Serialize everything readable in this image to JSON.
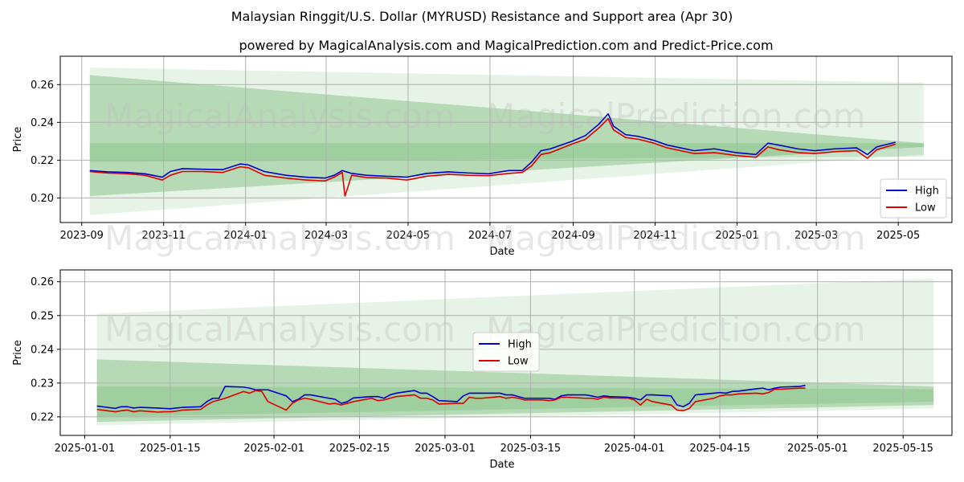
{
  "header": {
    "title": "Malaysian Ringgit/U.S. Dollar (MYRUSD) Resistance and Support area (Apr 30)",
    "subtitle": "powered by MagicalAnalysis.com and MagicalPrediction.com and Predict-Price.com"
  },
  "watermarks": [
    "MagicalAnalysis.com",
    "MagicalPrediction.com"
  ],
  "colors": {
    "high": "#0000cc",
    "low": "#dd0000",
    "band_dark": "#3a9a3a",
    "band_light": "#8cc48c"
  },
  "chart_data": [
    {
      "type": "line",
      "xlabel": "Date",
      "ylabel": "Price",
      "x_is_date": true,
      "xlim": [
        "2023-08-16",
        "2025-06-10"
      ],
      "ylim": [
        0.187,
        0.275
      ],
      "xticks": [
        "2023-09",
        "2023-11",
        "2024-01",
        "2024-03",
        "2024-05",
        "2024-07",
        "2024-09",
        "2024-11",
        "2025-01",
        "2025-03",
        "2025-05"
      ],
      "xtick_dates": [
        "2023-09-01",
        "2023-11-01",
        "2024-01-01",
        "2024-03-01",
        "2024-05-01",
        "2024-07-01",
        "2024-09-01",
        "2024-11-01",
        "2025-01-01",
        "2025-03-01",
        "2025-05-01"
      ],
      "yticks": [
        0.2,
        0.22,
        0.24,
        0.26
      ],
      "ytick_labels": [
        "0.20",
        "0.22",
        "0.24",
        "0.26"
      ],
      "legend": {
        "position": "lower-right",
        "entries": [
          "High",
          "Low"
        ]
      },
      "bands": [
        {
          "x": [
            "2023-09-07",
            "2025-05-20"
          ],
          "upper": [
            0.269,
            0.261
          ],
          "lower": [
            0.191,
            0.223
          ],
          "opacity": 0.12
        },
        {
          "x": [
            "2023-09-07",
            "2025-05-20"
          ],
          "upper": [
            0.265,
            0.229
          ],
          "lower": [
            0.201,
            0.227
          ],
          "opacity": 0.28
        },
        {
          "x": [
            "2023-09-07",
            "2025-05-20"
          ],
          "upper": [
            0.229,
            0.229
          ],
          "lower": [
            0.219,
            0.222
          ],
          "opacity": 0.18
        }
      ],
      "series": [
        {
          "name": "High",
          "x": [
            "2023-09-07",
            "2023-09-20",
            "2023-10-05",
            "2023-10-18",
            "2023-10-31",
            "2023-11-06",
            "2023-11-15",
            "2023-11-30",
            "2023-12-15",
            "2023-12-28",
            "2024-01-03",
            "2024-01-15",
            "2024-01-31",
            "2024-02-15",
            "2024-02-29",
            "2024-03-07",
            "2024-03-13",
            "2024-03-20",
            "2024-03-31",
            "2024-04-15",
            "2024-04-30",
            "2024-05-15",
            "2024-05-31",
            "2024-06-15",
            "2024-06-30",
            "2024-07-15",
            "2024-07-25",
            "2024-08-01",
            "2024-08-08",
            "2024-08-15",
            "2024-08-31",
            "2024-09-10",
            "2024-09-20",
            "2024-09-27",
            "2024-10-01",
            "2024-10-10",
            "2024-10-20",
            "2024-10-31",
            "2024-11-10",
            "2024-11-30",
            "2024-12-15",
            "2024-12-31",
            "2025-01-15",
            "2025-01-24",
            "2025-02-01",
            "2025-02-15",
            "2025-02-28",
            "2025-03-15",
            "2025-03-31",
            "2025-04-08",
            "2025-04-15",
            "2025-04-29"
          ],
          "values": [
            0.2145,
            0.2138,
            0.2135,
            0.2128,
            0.211,
            0.214,
            0.2155,
            0.2152,
            0.215,
            0.218,
            0.2175,
            0.214,
            0.212,
            0.211,
            0.2105,
            0.212,
            0.2145,
            0.213,
            0.212,
            0.2115,
            0.211,
            0.213,
            0.2138,
            0.2132,
            0.2128,
            0.2145,
            0.2145,
            0.219,
            0.225,
            0.226,
            0.23,
            0.233,
            0.239,
            0.2445,
            0.238,
            0.2335,
            0.2325,
            0.2305,
            0.228,
            0.225,
            0.226,
            0.224,
            0.223,
            0.229,
            0.228,
            0.226,
            0.225,
            0.226,
            0.2265,
            0.223,
            0.227,
            0.2295
          ]
        },
        {
          "name": "Low",
          "x": [
            "2023-09-07",
            "2023-09-20",
            "2023-10-05",
            "2023-10-18",
            "2023-10-31",
            "2023-11-06",
            "2023-11-15",
            "2023-11-30",
            "2023-12-15",
            "2023-12-28",
            "2024-01-03",
            "2024-01-15",
            "2024-01-31",
            "2024-02-15",
            "2024-02-29",
            "2024-03-07",
            "2024-03-13",
            "2024-03-15",
            "2024-03-20",
            "2024-03-31",
            "2024-04-15",
            "2024-04-30",
            "2024-05-15",
            "2024-05-31",
            "2024-06-15",
            "2024-06-30",
            "2024-07-15",
            "2024-07-25",
            "2024-08-01",
            "2024-08-08",
            "2024-08-15",
            "2024-08-31",
            "2024-09-10",
            "2024-09-20",
            "2024-09-27",
            "2024-10-01",
            "2024-10-10",
            "2024-10-20",
            "2024-10-31",
            "2024-11-10",
            "2024-11-30",
            "2024-12-15",
            "2024-12-31",
            "2025-01-15",
            "2025-01-24",
            "2025-02-01",
            "2025-02-15",
            "2025-02-28",
            "2025-03-15",
            "2025-03-31",
            "2025-04-08",
            "2025-04-15",
            "2025-04-29"
          ],
          "values": [
            0.214,
            0.2132,
            0.2128,
            0.212,
            0.2095,
            0.212,
            0.214,
            0.214,
            0.2135,
            0.2165,
            0.216,
            0.212,
            0.2105,
            0.2095,
            0.209,
            0.211,
            0.2135,
            0.201,
            0.212,
            0.2108,
            0.2105,
            0.2095,
            0.2115,
            0.2125,
            0.212,
            0.2118,
            0.213,
            0.2135,
            0.217,
            0.223,
            0.224,
            0.2285,
            0.231,
            0.237,
            0.242,
            0.236,
            0.232,
            0.231,
            0.229,
            0.2265,
            0.2235,
            0.224,
            0.2225,
            0.2215,
            0.227,
            0.2255,
            0.224,
            0.2235,
            0.2245,
            0.225,
            0.221,
            0.2255,
            0.2285
          ]
        }
      ]
    },
    {
      "type": "line",
      "xlabel": "Date",
      "ylabel": "Price",
      "x_is_date": true,
      "xlim": [
        "2024-12-28",
        "2025-05-23"
      ],
      "ylim": [
        0.2145,
        0.2635
      ],
      "xticks": [
        "2025-01-01",
        "2025-01-15",
        "2025-02-01",
        "2025-02-15",
        "2025-03-01",
        "2025-03-15",
        "2025-04-01",
        "2025-04-15",
        "2025-05-01",
        "2025-05-15"
      ],
      "yticks": [
        0.22,
        0.23,
        0.24,
        0.25,
        0.26
      ],
      "ytick_labels": [
        "0.22",
        "0.23",
        "0.24",
        "0.25",
        "0.26"
      ],
      "legend": {
        "position": "center",
        "entries": [
          "High",
          "Low"
        ]
      },
      "bands": [
        {
          "x": [
            "2025-01-03",
            "2025-05-20"
          ],
          "upper": [
            0.2505,
            0.261
          ],
          "lower": [
            0.2175,
            0.2225
          ],
          "opacity": 0.12
        },
        {
          "x": [
            "2025-01-03",
            "2025-05-20"
          ],
          "upper": [
            0.237,
            0.229
          ],
          "lower": [
            0.2185,
            0.2235
          ],
          "opacity": 0.28
        },
        {
          "x": [
            "2025-01-03",
            "2025-05-20"
          ],
          "upper": [
            0.229,
            0.2282
          ],
          "lower": [
            0.22,
            0.2245
          ],
          "opacity": 0.18
        }
      ],
      "series": [
        {
          "name": "High",
          "x": [
            "2025-01-03",
            "2025-01-06",
            "2025-01-07",
            "2025-01-08",
            "2025-01-09",
            "2025-01-10",
            "2025-01-13",
            "2025-01-14",
            "2025-01-15",
            "2025-01-16",
            "2025-01-17",
            "2025-01-20",
            "2025-01-21",
            "2025-01-22",
            "2025-01-23",
            "2025-01-24",
            "2025-01-27",
            "2025-01-28",
            "2025-01-29",
            "2025-01-30",
            "2025-01-31",
            "2025-02-03",
            "2025-02-04",
            "2025-02-05",
            "2025-02-06",
            "2025-02-07",
            "2025-02-10",
            "2025-02-11",
            "2025-02-12",
            "2025-02-13",
            "2025-02-14",
            "2025-02-17",
            "2025-02-18",
            "2025-02-19",
            "2025-02-20",
            "2025-02-21",
            "2025-02-24",
            "2025-02-25",
            "2025-02-26",
            "2025-02-27",
            "2025-02-28",
            "2025-03-03",
            "2025-03-04",
            "2025-03-05",
            "2025-03-06",
            "2025-03-07",
            "2025-03-10",
            "2025-03-11",
            "2025-03-12",
            "2025-03-13",
            "2025-03-14",
            "2025-03-17",
            "2025-03-18",
            "2025-03-19",
            "2025-03-20",
            "2025-03-21",
            "2025-03-24",
            "2025-03-25",
            "2025-03-26",
            "2025-03-27",
            "2025-03-28",
            "2025-03-31",
            "2025-04-01",
            "2025-04-02",
            "2025-04-03",
            "2025-04-04",
            "2025-04-07",
            "2025-04-08",
            "2025-04-09",
            "2025-04-10",
            "2025-04-11",
            "2025-04-14",
            "2025-04-15",
            "2025-04-16",
            "2025-04-17",
            "2025-04-18",
            "2025-04-21",
            "2025-04-22",
            "2025-04-23",
            "2025-04-24",
            "2025-04-25",
            "2025-04-28",
            "2025-04-29"
          ],
          "values": [
            0.2232,
            0.2225,
            0.223,
            0.223,
            0.2226,
            0.2228,
            0.2226,
            0.2225,
            0.2224,
            0.2226,
            0.2228,
            0.223,
            0.2245,
            0.2255,
            0.2255,
            0.229,
            0.2288,
            0.2285,
            0.228,
            0.228,
            0.228,
            0.2262,
            0.2245,
            0.2252,
            0.2265,
            0.2265,
            0.2255,
            0.2252,
            0.224,
            0.2245,
            0.2256,
            0.226,
            0.226,
            0.2255,
            0.2265,
            0.227,
            0.2278,
            0.227,
            0.227,
            0.226,
            0.2248,
            0.2245,
            0.2262,
            0.227,
            0.227,
            0.227,
            0.227,
            0.2265,
            0.2265,
            0.226,
            0.2255,
            0.2255,
            0.2255,
            0.2252,
            0.2262,
            0.2265,
            0.2265,
            0.2262,
            0.2258,
            0.2262,
            0.226,
            0.2258,
            0.2255,
            0.225,
            0.2265,
            0.2265,
            0.2262,
            0.2235,
            0.223,
            0.224,
            0.2265,
            0.227,
            0.2272,
            0.227,
            0.2275,
            0.2276,
            0.2283,
            0.2285,
            0.228,
            0.2285,
            0.2288,
            0.229,
            0.2293
          ]
        },
        {
          "name": "Low",
          "x": [
            "2025-01-03",
            "2025-01-06",
            "2025-01-07",
            "2025-01-08",
            "2025-01-09",
            "2025-01-10",
            "2025-01-13",
            "2025-01-14",
            "2025-01-15",
            "2025-01-16",
            "2025-01-17",
            "2025-01-20",
            "2025-01-21",
            "2025-01-22",
            "2025-01-23",
            "2025-01-24",
            "2025-01-27",
            "2025-01-28",
            "2025-01-29",
            "2025-01-30",
            "2025-01-31",
            "2025-02-03",
            "2025-02-04",
            "2025-02-05",
            "2025-02-06",
            "2025-02-07",
            "2025-02-10",
            "2025-02-11",
            "2025-02-12",
            "2025-02-13",
            "2025-02-14",
            "2025-02-17",
            "2025-02-18",
            "2025-02-19",
            "2025-02-20",
            "2025-02-21",
            "2025-02-24",
            "2025-02-25",
            "2025-02-26",
            "2025-02-27",
            "2025-02-28",
            "2025-03-03",
            "2025-03-04",
            "2025-03-05",
            "2025-03-06",
            "2025-03-07",
            "2025-03-10",
            "2025-03-11",
            "2025-03-12",
            "2025-03-13",
            "2025-03-14",
            "2025-03-17",
            "2025-03-18",
            "2025-03-19",
            "2025-03-20",
            "2025-03-21",
            "2025-03-24",
            "2025-03-25",
            "2025-03-26",
            "2025-03-27",
            "2025-03-28",
            "2025-03-31",
            "2025-04-01",
            "2025-04-02",
            "2025-04-03",
            "2025-04-04",
            "2025-04-07",
            "2025-04-08",
            "2025-04-09",
            "2025-04-10",
            "2025-04-11",
            "2025-04-14",
            "2025-04-15",
            "2025-04-16",
            "2025-04-17",
            "2025-04-18",
            "2025-04-21",
            "2025-04-22",
            "2025-04-23",
            "2025-04-24",
            "2025-04-25",
            "2025-04-28",
            "2025-04-29"
          ],
          "values": [
            0.2222,
            0.2215,
            0.2218,
            0.222,
            0.2215,
            0.2218,
            0.2214,
            0.2215,
            0.2215,
            0.2217,
            0.222,
            0.2222,
            0.2235,
            0.2245,
            0.225,
            0.2255,
            0.2275,
            0.227,
            0.2278,
            0.2275,
            0.2245,
            0.222,
            0.224,
            0.225,
            0.2255,
            0.2252,
            0.2238,
            0.224,
            0.2235,
            0.224,
            0.2245,
            0.2255,
            0.2248,
            0.225,
            0.2255,
            0.226,
            0.2265,
            0.2255,
            0.2255,
            0.225,
            0.2238,
            0.224,
            0.224,
            0.2258,
            0.2255,
            0.2255,
            0.226,
            0.2255,
            0.2258,
            0.2255,
            0.225,
            0.225,
            0.2248,
            0.225,
            0.2258,
            0.2258,
            0.2255,
            0.2255,
            0.2252,
            0.2258,
            0.2256,
            0.2255,
            0.225,
            0.2235,
            0.2252,
            0.2245,
            0.2235,
            0.222,
            0.2218,
            0.2225,
            0.2245,
            0.2255,
            0.2262,
            0.2265,
            0.2265,
            0.2268,
            0.227,
            0.2268,
            0.2272,
            0.2282,
            0.2282,
            0.2285,
            0.2285
          ]
        }
      ]
    }
  ]
}
